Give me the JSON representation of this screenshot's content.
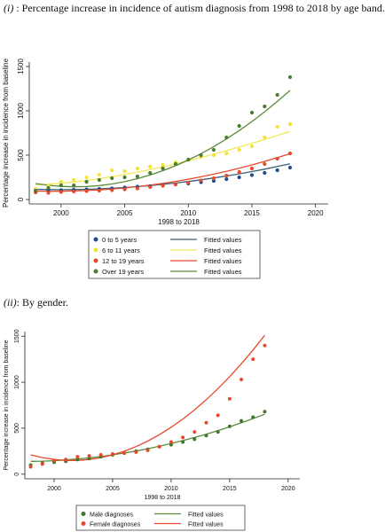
{
  "caption1": {
    "num": "(i)",
    "text": " : Percentage increase in incidence of autism diagnosis from 1998 to 2018 by age band."
  },
  "caption2": {
    "num": "(ii)",
    "text": ": By gender."
  },
  "chart_data": [
    {
      "type": "scatter",
      "xlabel": "1998 to 2018",
      "ylabel": "Percentage increase in incidence from baseline",
      "xlim": [
        1997.5,
        2021
      ],
      "ylim": [
        -50,
        1550
      ],
      "xticks": [
        2000,
        2005,
        2010,
        2015,
        2020
      ],
      "yticks": [
        0,
        500,
        1000,
        1500
      ],
      "grid": false,
      "legend_position": "bottom",
      "x": [
        1998,
        1999,
        2000,
        2001,
        2002,
        2003,
        2004,
        2005,
        2006,
        2007,
        2008,
        2009,
        2010,
        2011,
        2012,
        2013,
        2014,
        2015,
        2016,
        2017,
        2018
      ],
      "series": [
        {
          "name": "0 to 5 years",
          "color": "#1f4e8c",
          "fit_name": "Fitted values",
          "fit_color": "#3b5f7a",
          "values": [
            100,
            110,
            105,
            110,
            115,
            120,
            125,
            135,
            145,
            150,
            160,
            170,
            180,
            195,
            210,
            230,
            250,
            275,
            300,
            330,
            360
          ],
          "fit": [
            115,
            112,
            111,
            112,
            115,
            120,
            127,
            135,
            145,
            157,
            171,
            186,
            203,
            222,
            243,
            265,
            289,
            315,
            342,
            372,
            403
          ]
        },
        {
          "name": "6 to 11 years",
          "color": "#f3e23a",
          "fit_name": "Fitted values",
          "fit_color": "#f2e85a",
          "values": [
            120,
            150,
            200,
            220,
            250,
            280,
            330,
            320,
            350,
            370,
            390,
            420,
            450,
            480,
            500,
            520,
            560,
            600,
            700,
            820,
            850
          ],
          "fit": [
            165,
            172,
            183,
            198,
            215,
            235,
            257,
            282,
            309,
            338,
            369,
            402,
            437,
            473,
            511,
            551,
            592,
            634,
            678,
            723,
            769
          ]
        },
        {
          "name": "12 to 19 years",
          "color": "#e8492b",
          "fit_name": "Fitted values",
          "fit_color": "#e8492b",
          "values": [
            80,
            75,
            85,
            90,
            95,
            100,
            105,
            115,
            125,
            140,
            155,
            170,
            190,
            215,
            240,
            270,
            310,
            350,
            400,
            460,
            520
          ],
          "fit": [
            95,
            93,
            93,
            96,
            101,
            108,
            118,
            130,
            145,
            162,
            182,
            204,
            229,
            256,
            286,
            318,
            353,
            390,
            430,
            472,
            516
          ]
        },
        {
          "name": "Over 19 years",
          "color": "#4a7d2d",
          "fit_name": "Fitted values",
          "fit_color": "#5b8a3a",
          "values": [
            100,
            130,
            160,
            160,
            200,
            220,
            240,
            250,
            260,
            300,
            350,
            400,
            450,
            500,
            560,
            700,
            830,
            980,
            1050,
            1180,
            1380
          ],
          "fit": [
            180,
            160,
            148,
            143,
            146,
            157,
            175,
            201,
            235,
            276,
            325,
            381,
            445,
            517,
            596,
            683,
            777,
            879,
            989,
            1106,
            1230
          ]
        }
      ]
    },
    {
      "type": "scatter",
      "xlabel": "1998 to 2018",
      "ylabel": "Percentage increase in incidence from baseline",
      "xlim": [
        1997.5,
        2021
      ],
      "ylim": [
        -50,
        1550
      ],
      "xticks": [
        2000,
        2005,
        2010,
        2015,
        2020
      ],
      "yticks": [
        0,
        500,
        1000,
        1500
      ],
      "grid": false,
      "legend_position": "bottom",
      "x": [
        1998,
        1999,
        2000,
        2001,
        2002,
        2003,
        2004,
        2005,
        2006,
        2007,
        2008,
        2009,
        2010,
        2011,
        2012,
        2013,
        2014,
        2015,
        2016,
        2017,
        2018
      ],
      "series": [
        {
          "name": "Male diagnoses",
          "color": "#3f7a2a",
          "fit_name": "Fitted values",
          "fit_color": "#5b8a3a",
          "values": [
            100,
            120,
            130,
            140,
            160,
            170,
            190,
            210,
            230,
            250,
            270,
            300,
            320,
            350,
            380,
            420,
            460,
            520,
            580,
            620,
            680
          ],
          "fit": [
            140,
            142,
            147,
            155,
            165,
            177,
            192,
            210,
            230,
            252,
            277,
            304,
            333,
            365,
            399,
            435,
            474,
            515,
            558,
            604,
            652
          ]
        },
        {
          "name": "Female diagnoses",
          "color": "#e8492b",
          "fit_name": "Fitted values",
          "fit_color": "#e8492b",
          "values": [
            80,
            110,
            150,
            160,
            190,
            200,
            210,
            220,
            230,
            240,
            260,
            300,
            350,
            400,
            460,
            560,
            640,
            820,
            1030,
            1250,
            1400
          ],
          "fit": [
            210,
            180,
            160,
            150,
            150,
            160,
            180,
            210,
            250,
            300,
            360,
            430,
            510,
            600,
            700,
            810,
            930,
            1060,
            1200,
            1350,
            1510
          ]
        }
      ]
    }
  ]
}
